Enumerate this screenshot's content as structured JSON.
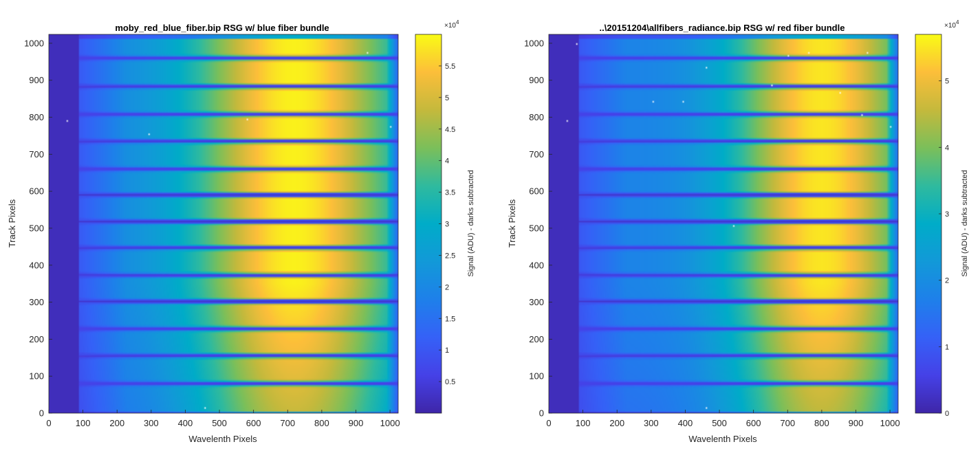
{
  "chart_data": [
    {
      "type": "heatmap",
      "title": "moby_red_blue_fiber.bip    RSG w/ blue fiber bundle",
      "xlabel": "Wavelenth Pixels",
      "ylabel": "Track Pixels",
      "xlim": [
        0,
        1024
      ],
      "ylim": [
        0,
        1024
      ],
      "xticks": [
        0,
        100,
        200,
        300,
        400,
        500,
        600,
        700,
        800,
        900,
        1000
      ],
      "yticks": [
        0,
        100,
        200,
        300,
        400,
        500,
        600,
        700,
        800,
        900,
        1000
      ],
      "colormap": "parula",
      "colorbar": {
        "label": "Signal (ADU) - darks subtracted",
        "multiplier": "×10",
        "exponent": "4",
        "range": [
          0,
          6
        ],
        "ticks": [
          0.5,
          1,
          1.5,
          2,
          2.5,
          3,
          3.5,
          4,
          4.5,
          5,
          5.5
        ],
        "tick_labels": [
          "0.5",
          "1",
          "1.5",
          "2",
          "2.5",
          "3",
          "3.5",
          "4",
          "4.5",
          "5",
          "5.5"
        ]
      },
      "dark_region_x": [
        0,
        88
      ],
      "band_gaps_y": [
        80,
        155,
        228,
        302,
        373,
        447,
        518,
        590,
        660,
        735,
        808,
        883,
        960
      ],
      "peak_signal": 5.9,
      "peak_wavelength_pixel": 720,
      "dead_pixels": [
        [
          50,
          793
        ],
        [
          290,
          755
        ],
        [
          455,
          18
        ],
        [
          930,
          975
        ],
        [
          580,
          795
        ],
        [
          1000,
          775
        ]
      ]
    },
    {
      "type": "heatmap",
      "title": "..\\20151204\\allfibers_radiance.bip    RSG w/ red fiber bundle",
      "xlabel": "Wavelenth Pixels",
      "ylabel": "Track Pixels",
      "xlim": [
        0,
        1024
      ],
      "ylim": [
        0,
        1024
      ],
      "xticks": [
        0,
        100,
        200,
        300,
        400,
        500,
        600,
        700,
        800,
        900,
        1000
      ],
      "yticks": [
        0,
        100,
        200,
        300,
        400,
        500,
        600,
        700,
        800,
        900,
        1000
      ],
      "colormap": "parula",
      "colorbar": {
        "label": "Signal (ADU) - darks subtracted",
        "multiplier": "×10",
        "exponent": "4",
        "range": [
          0,
          5.7
        ],
        "ticks": [
          0,
          1,
          2,
          3,
          4,
          5
        ],
        "tick_labels": [
          "0",
          "1",
          "2",
          "3",
          "4",
          "5"
        ]
      },
      "dark_region_x": [
        0,
        88
      ],
      "band_gaps_y": [
        80,
        155,
        228,
        302,
        373,
        447,
        518,
        590,
        660,
        735,
        808,
        883,
        960
      ],
      "peak_signal": 5.5,
      "peak_wavelength_pixel": 800,
      "dead_pixels": [
        [
          50,
          793
        ],
        [
          80,
          1000
        ],
        [
          305,
          845
        ],
        [
          390,
          845
        ],
        [
          460,
          935
        ],
        [
          540,
          510
        ],
        [
          650,
          890
        ],
        [
          850,
          870
        ],
        [
          915,
          810
        ],
        [
          1000,
          775
        ],
        [
          460,
          18
        ],
        [
          700,
          970
        ],
        [
          760,
          975
        ],
        [
          930,
          975
        ]
      ]
    }
  ]
}
